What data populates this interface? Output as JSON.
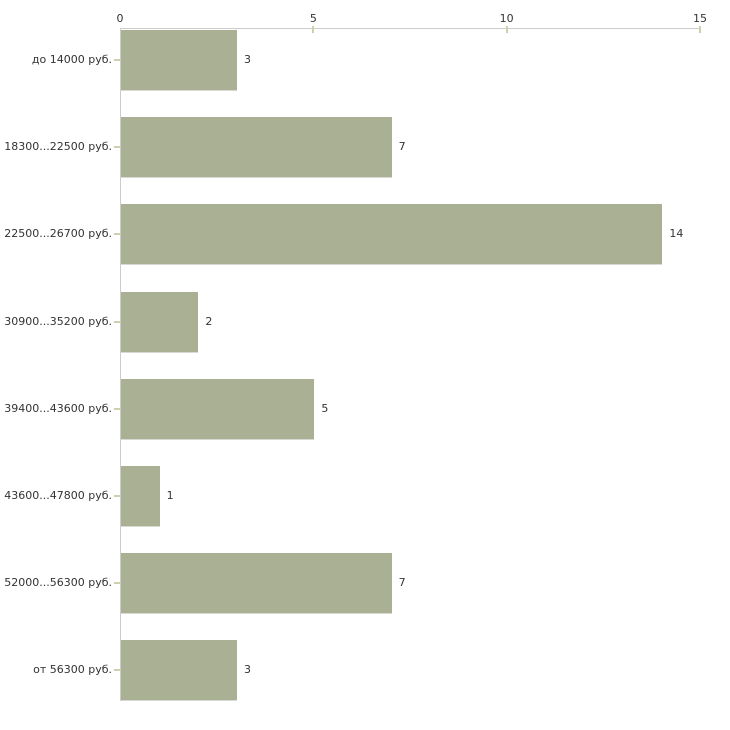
{
  "chart_data": {
    "type": "bar",
    "orientation": "horizontal",
    "title": "",
    "xlabel": "",
    "ylabel": "",
    "categories": [
      "до 14000 руб.",
      "18300...22500 руб.",
      "22500...26700 руб.",
      "30900...35200 руб.",
      "39400...43600 руб.",
      "43600...47800 руб.",
      "52000...56300 руб.",
      "от 56300 руб."
    ],
    "values": [
      3,
      7,
      14,
      2,
      5,
      1,
      7,
      3
    ],
    "value_labels": [
      "3",
      "7",
      "14",
      "2",
      "5",
      "1",
      "7",
      "3"
    ],
    "x_ticks": [
      0,
      5,
      10,
      15
    ],
    "xlim": [
      0,
      15
    ],
    "x_axis_position": "top",
    "grid": false,
    "legend": false,
    "colors": {
      "bar_fill": "#a9b094",
      "bar_bottom_shadow": "#d8d9d2",
      "axis_line": "#cccccc",
      "tick_mark": "#ced1ae",
      "text": "#333333",
      "background": "#ffffff"
    }
  }
}
